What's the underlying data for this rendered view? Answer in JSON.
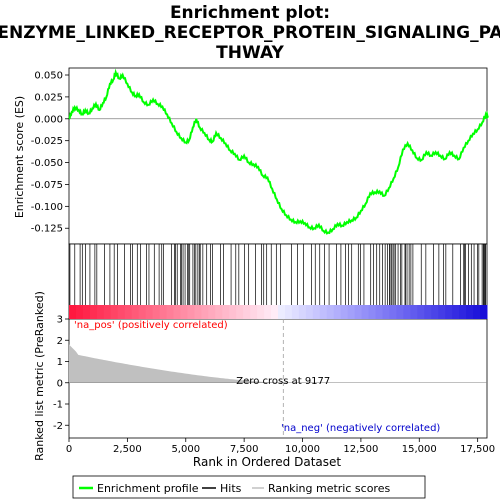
{
  "chart_data": {
    "type": "line",
    "title_line1": "Enrichment plot:",
    "title_line2": "ENZYME_LINKED_RECEPTOR_PROTEIN_SIGNALING_PA",
    "title_line3": "THWAY",
    "xlabel": "Rank in Ordered Dataset",
    "es_ylabel": "Enrichment score (ES)",
    "rank_ylabel": "Ranked list metric (PreRanked)",
    "xlim": [
      0,
      17900
    ],
    "x_ticks": [
      0,
      2500,
      5000,
      7500,
      10000,
      12500,
      15000,
      17500
    ],
    "x_tick_labels": [
      "0",
      "2,500",
      "5,000",
      "7,500",
      "10,000",
      "12,500",
      "15,000",
      "17,500"
    ],
    "es_ylim": [
      -0.143,
      0.058
    ],
    "es_ticks": [
      0.05,
      0.025,
      0.0,
      -0.025,
      -0.05,
      -0.075,
      -0.1,
      -0.125
    ],
    "es_tick_labels": [
      "0.050",
      "0.025",
      "0.000",
      "-0.025",
      "-0.050",
      "-0.075",
      "-0.100",
      "-0.125"
    ],
    "rank_ylim": [
      -2.6,
      3.0
    ],
    "rank_ticks": [
      3,
      2,
      1,
      0,
      -1,
      -2
    ],
    "rank_tick_labels": [
      "3",
      "2",
      "1",
      "0",
      "-1",
      "-2"
    ],
    "zero_cross_label": "Zero cross at 9177",
    "zero_cross_rank": 9177,
    "pos_label": "'na_pos' (positively correlated)",
    "neg_label": "'na_neg' (negatively correlated)",
    "colors": {
      "es_line": "#00ff00",
      "hits": "#000000",
      "metric_fill": "#c0c0c0",
      "pos_text": "#ff0000",
      "neg_text": "#0000cc",
      "zero_line": "#808080"
    },
    "es_curve": [
      [
        0,
        0.0
      ],
      [
        120,
        0.008
      ],
      [
        250,
        0.013
      ],
      [
        420,
        0.01
      ],
      [
        560,
        0.005
      ],
      [
        700,
        0.01
      ],
      [
        850,
        0.006
      ],
      [
        1000,
        0.012
      ],
      [
        1150,
        0.017
      ],
      [
        1300,
        0.01
      ],
      [
        1450,
        0.018
      ],
      [
        1600,
        0.025
      ],
      [
        1750,
        0.04
      ],
      [
        1900,
        0.045
      ],
      [
        2000,
        0.053
      ],
      [
        2150,
        0.046
      ],
      [
        2300,
        0.05
      ],
      [
        2500,
        0.04
      ],
      [
        2700,
        0.03
      ],
      [
        2850,
        0.026
      ],
      [
        3000,
        0.028
      ],
      [
        3200,
        0.019
      ],
      [
        3400,
        0.016
      ],
      [
        3600,
        0.022
      ],
      [
        3800,
        0.017
      ],
      [
        4000,
        0.014
      ],
      [
        4200,
        0.005
      ],
      [
        4400,
        -0.005
      ],
      [
        4600,
        -0.015
      ],
      [
        4800,
        -0.022
      ],
      [
        5000,
        -0.027
      ],
      [
        5150,
        -0.024
      ],
      [
        5300,
        -0.01
      ],
      [
        5450,
        0.0
      ],
      [
        5600,
        -0.01
      ],
      [
        5800,
        -0.016
      ],
      [
        6000,
        -0.024
      ],
      [
        6150,
        -0.026
      ],
      [
        6300,
        -0.016
      ],
      [
        6500,
        -0.022
      ],
      [
        6700,
        -0.028
      ],
      [
        6900,
        -0.036
      ],
      [
        7100,
        -0.04
      ],
      [
        7300,
        -0.047
      ],
      [
        7500,
        -0.042
      ],
      [
        7700,
        -0.05
      ],
      [
        7900,
        -0.052
      ],
      [
        8100,
        -0.055
      ],
      [
        8300,
        -0.065
      ],
      [
        8500,
        -0.067
      ],
      [
        8700,
        -0.08
      ],
      [
        8900,
        -0.092
      ],
      [
        9100,
        -0.103
      ],
      [
        9300,
        -0.11
      ],
      [
        9500,
        -0.115
      ],
      [
        9700,
        -0.118
      ],
      [
        9900,
        -0.117
      ],
      [
        10100,
        -0.119
      ],
      [
        10300,
        -0.124
      ],
      [
        10500,
        -0.125
      ],
      [
        10700,
        -0.121
      ],
      [
        10900,
        -0.128
      ],
      [
        11100,
        -0.13
      ],
      [
        11300,
        -0.126
      ],
      [
        11500,
        -0.12
      ],
      [
        11700,
        -0.122
      ],
      [
        11900,
        -0.118
      ],
      [
        12100,
        -0.116
      ],
      [
        12300,
        -0.113
      ],
      [
        12500,
        -0.105
      ],
      [
        12700,
        -0.097
      ],
      [
        12900,
        -0.085
      ],
      [
        13100,
        -0.084
      ],
      [
        13300,
        -0.083
      ],
      [
        13500,
        -0.088
      ],
      [
        13700,
        -0.079
      ],
      [
        13900,
        -0.068
      ],
      [
        14100,
        -0.055
      ],
      [
        14300,
        -0.035
      ],
      [
        14500,
        -0.028
      ],
      [
        14700,
        -0.036
      ],
      [
        14900,
        -0.045
      ],
      [
        15100,
        -0.047
      ],
      [
        15300,
        -0.038
      ],
      [
        15500,
        -0.042
      ],
      [
        15700,
        -0.038
      ],
      [
        15900,
        -0.042
      ],
      [
        16100,
        -0.046
      ],
      [
        16300,
        -0.038
      ],
      [
        16500,
        -0.042
      ],
      [
        16700,
        -0.046
      ],
      [
        16900,
        -0.033
      ],
      [
        17100,
        -0.025
      ],
      [
        17300,
        -0.017
      ],
      [
        17500,
        -0.012
      ],
      [
        17700,
        -0.004
      ],
      [
        17850,
        0.005
      ],
      [
        17950,
        0.003
      ]
    ]
  }
}
